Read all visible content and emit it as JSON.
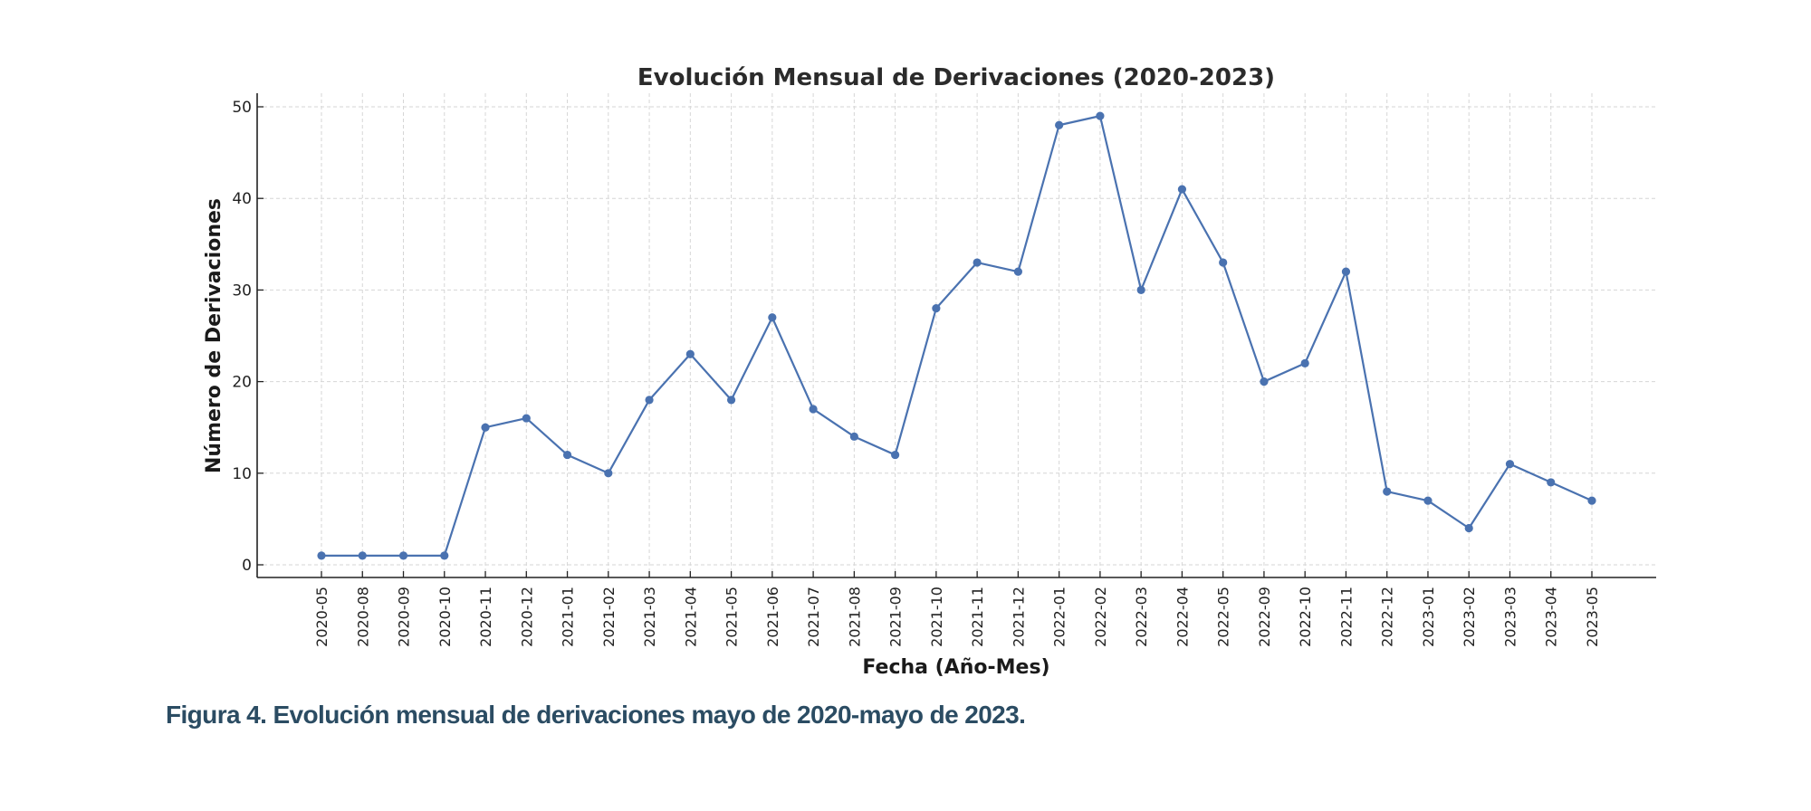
{
  "colors": {
    "series": "#4a72b0",
    "caption": "#2b4c63"
  },
  "chart_data": {
    "type": "line",
    "title": "Evolución Mensual de Derivaciones (2020-2023)",
    "xlabel": "Fecha (Año-Mes)",
    "ylabel": "Número de Derivaciones",
    "categories": [
      "2020-05",
      "2020-08",
      "2020-09",
      "2020-10",
      "2020-11",
      "2020-12",
      "2021-01",
      "2021-02",
      "2021-03",
      "2021-04",
      "2021-05",
      "2021-06",
      "2021-07",
      "2021-08",
      "2021-09",
      "2021-10",
      "2021-11",
      "2021-12",
      "2022-01",
      "2022-02",
      "2022-03",
      "2022-04",
      "2022-05",
      "2022-09",
      "2022-10",
      "2022-11",
      "2022-12",
      "2023-01",
      "2023-02",
      "2023-03",
      "2023-04",
      "2023-05"
    ],
    "series": [
      {
        "name": "Derivaciones",
        "values": [
          1,
          1,
          1,
          1,
          15,
          16,
          12,
          10,
          18,
          23,
          18,
          27,
          17,
          14,
          12,
          28,
          33,
          32,
          48,
          49,
          30,
          41,
          33,
          20,
          22,
          32,
          8,
          7,
          4,
          11,
          9,
          7
        ]
      }
    ],
    "yticks": [
      0,
      10,
      20,
      30,
      40,
      50
    ],
    "ylim": [
      -1.4,
      51.4
    ],
    "grid": true,
    "markers": true
  },
  "caption": "Figura 4. Evolución mensual de derivaciones mayo de 2020-mayo de 2023."
}
